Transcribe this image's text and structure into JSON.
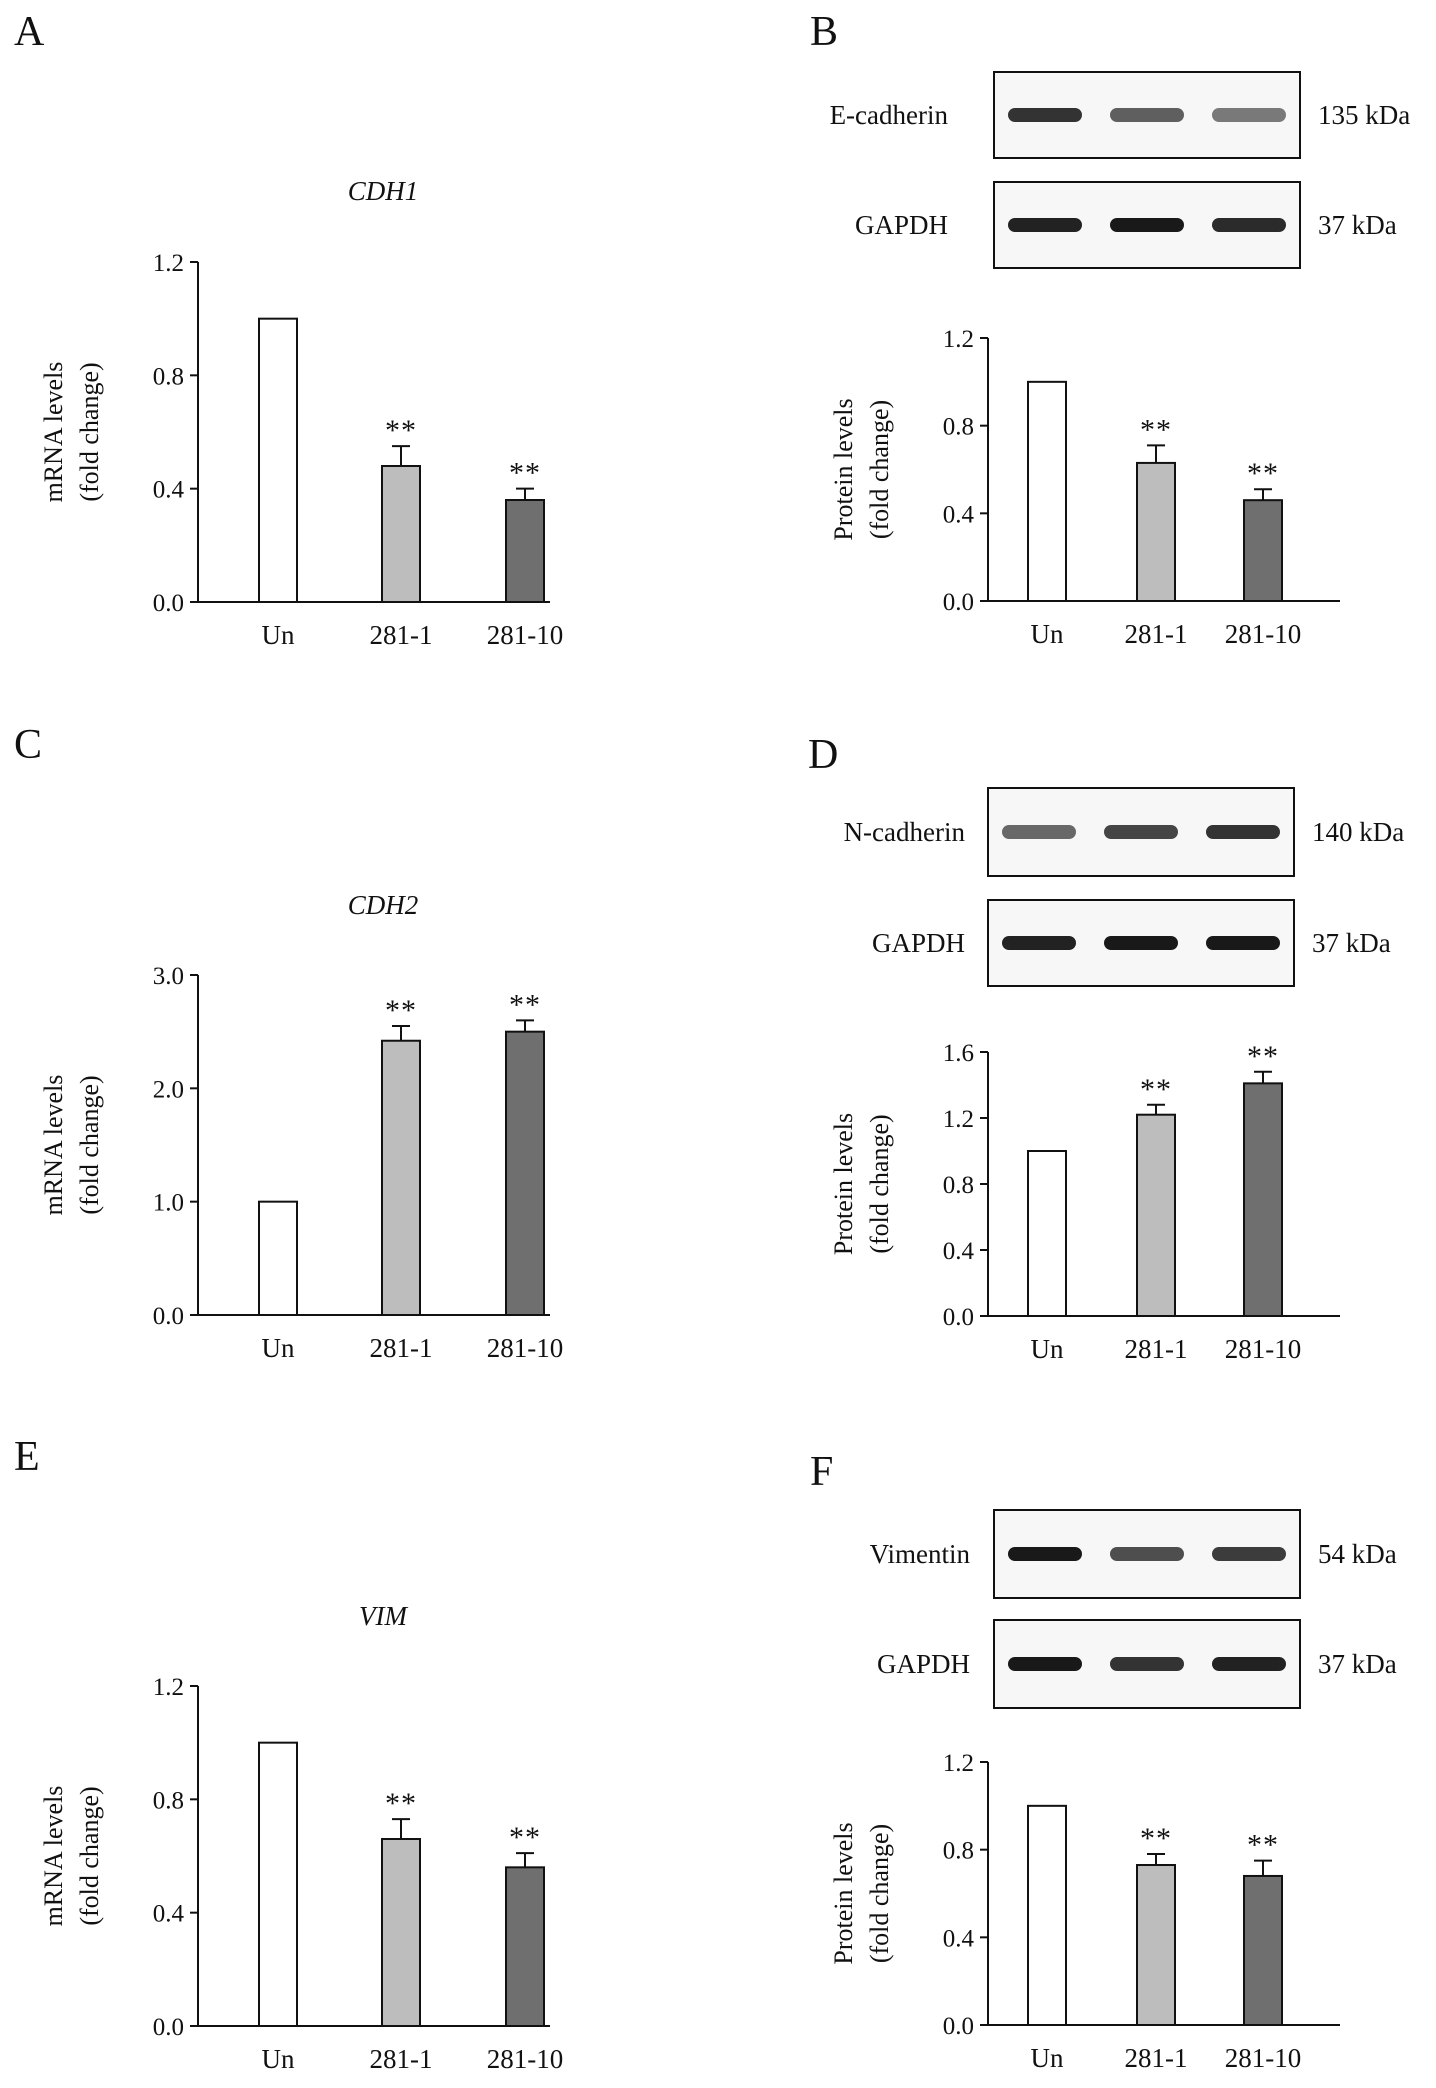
{
  "chart_data": [
    {
      "panel": "A",
      "type": "bar",
      "title": "CDH1",
      "ylabel": [
        "mRNA levels",
        "(fold change)"
      ],
      "categories": [
        "Un",
        "281-1",
        "281-10"
      ],
      "values": [
        1.0,
        0.48,
        0.36
      ],
      "errors": [
        0,
        0.07,
        0.04
      ],
      "significance": [
        "",
        "**",
        "**"
      ],
      "ylim": [
        0,
        1.2
      ],
      "yticks": [
        "0.0",
        "0.4",
        "0.8",
        "1.2"
      ],
      "bar_colors": [
        "#ffffff",
        "#bdbdbd",
        "#6f6f6f"
      ]
    },
    {
      "panel": "B",
      "type": "bar",
      "title": "",
      "ylabel": [
        "Protein levels",
        "(fold change)"
      ],
      "categories": [
        "Un",
        "281-1",
        "281-10"
      ],
      "values": [
        1.0,
        0.63,
        0.46
      ],
      "errors": [
        0,
        0.08,
        0.05
      ],
      "significance": [
        "",
        "**",
        "**"
      ],
      "ylim": [
        0,
        1.2
      ],
      "yticks": [
        "0.0",
        "0.4",
        "0.8",
        "1.2"
      ],
      "bar_colors": [
        "#ffffff",
        "#bdbdbd",
        "#6f6f6f"
      ],
      "blots": [
        {
          "label": "E-cadherin",
          "size": "135 kDa",
          "intensities": [
            0.85,
            0.6,
            0.45
          ]
        },
        {
          "label": "GAPDH",
          "size": "37 kDa",
          "intensities": [
            0.95,
            1.0,
            0.9
          ]
        }
      ]
    },
    {
      "panel": "C",
      "type": "bar",
      "title": "CDH2",
      "ylabel": [
        "mRNA levels",
        "(fold change)"
      ],
      "categories": [
        "Un",
        "281-1",
        "281-10"
      ],
      "values": [
        1.0,
        2.42,
        2.5
      ],
      "errors": [
        0,
        0.13,
        0.1
      ],
      "significance": [
        "",
        "**",
        "**"
      ],
      "ylim": [
        0,
        3.0
      ],
      "yticks": [
        "0.0",
        "1.0",
        "2.0",
        "3.0"
      ],
      "bar_colors": [
        "#ffffff",
        "#bdbdbd",
        "#6f6f6f"
      ]
    },
    {
      "panel": "D",
      "type": "bar",
      "title": "",
      "ylabel": [
        "Protein levels",
        "(fold change)"
      ],
      "categories": [
        "Un",
        "281-1",
        "281-10"
      ],
      "values": [
        1.0,
        1.22,
        1.41
      ],
      "errors": [
        0,
        0.06,
        0.07
      ],
      "significance": [
        "",
        "**",
        "**"
      ],
      "ylim": [
        0,
        1.6
      ],
      "yticks": [
        "0.0",
        "0.4",
        "0.8",
        "1.2",
        "1.6"
      ],
      "bar_colors": [
        "#ffffff",
        "#bdbdbd",
        "#6f6f6f"
      ],
      "blots": [
        {
          "label": "N-cadherin",
          "size": "140 kDa",
          "intensities": [
            0.55,
            0.75,
            0.85
          ]
        },
        {
          "label": "GAPDH",
          "size": "37 kDa",
          "intensities": [
            0.95,
            1.0,
            1.0
          ]
        }
      ]
    },
    {
      "panel": "E",
      "type": "bar",
      "title": "VIM",
      "ylabel": [
        "mRNA levels",
        "(fold change)"
      ],
      "categories": [
        "Un",
        "281-1",
        "281-10"
      ],
      "values": [
        1.0,
        0.66,
        0.56
      ],
      "errors": [
        0,
        0.07,
        0.05
      ],
      "significance": [
        "",
        "**",
        "**"
      ],
      "ylim": [
        0,
        1.2
      ],
      "yticks": [
        "0.0",
        "0.4",
        "0.8",
        "1.2"
      ],
      "bar_colors": [
        "#ffffff",
        "#bdbdbd",
        "#6f6f6f"
      ]
    },
    {
      "panel": "F",
      "type": "bar",
      "title": "",
      "ylabel": [
        "Protein levels",
        "(fold change)"
      ],
      "categories": [
        "Un",
        "281-1",
        "281-10"
      ],
      "values": [
        1.0,
        0.73,
        0.68
      ],
      "errors": [
        0,
        0.05,
        0.07
      ],
      "significance": [
        "",
        "**",
        "**"
      ],
      "ylim": [
        0,
        1.2
      ],
      "yticks": [
        "0.0",
        "0.4",
        "0.8",
        "1.2"
      ],
      "bar_colors": [
        "#ffffff",
        "#bdbdbd",
        "#6f6f6f"
      ],
      "blots": [
        {
          "label": "Vimentin",
          "size": "54 kDa",
          "intensities": [
            1.0,
            0.7,
            0.8
          ]
        },
        {
          "label": "GAPDH",
          "size": "37 kDa",
          "intensities": [
            1.0,
            0.85,
            0.95
          ]
        }
      ]
    }
  ]
}
